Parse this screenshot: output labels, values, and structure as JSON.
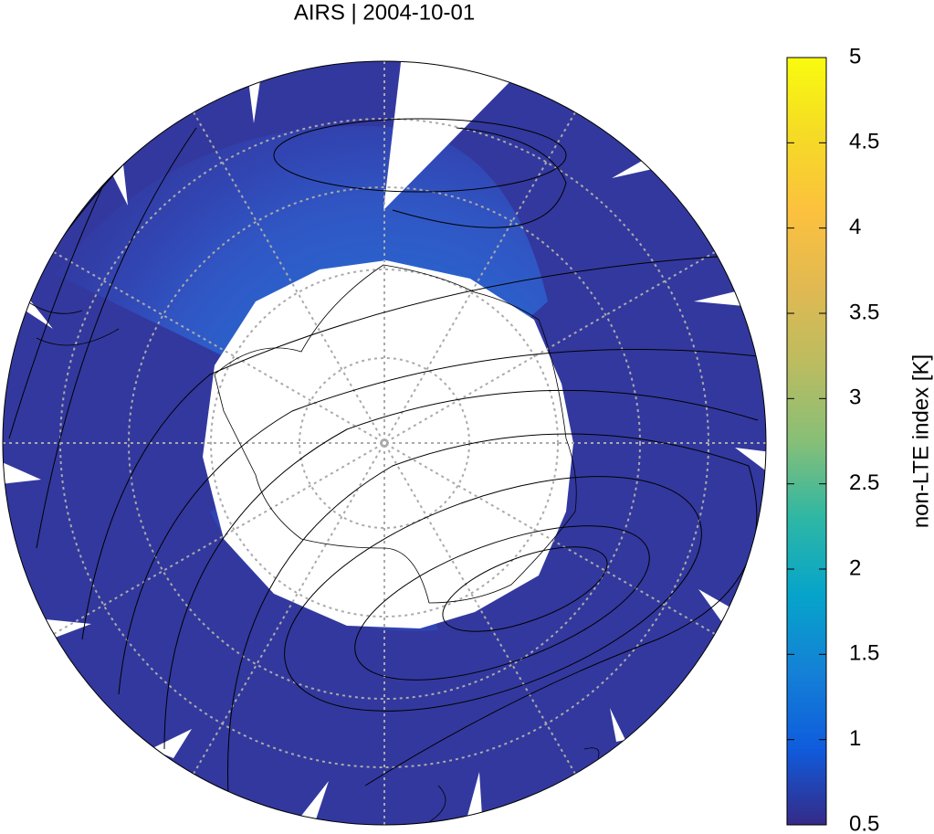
{
  "chart_data": {
    "type": "polar-map",
    "title": "AIRS | 2004-10-01",
    "colorbar": {
      "label": "non-LTE index [K]",
      "lim": [
        0.5,
        5
      ],
      "ticks": [
        0.5,
        1,
        1.5,
        2,
        2.5,
        3,
        3.5,
        4,
        4.5,
        5
      ]
    }
  }
}
